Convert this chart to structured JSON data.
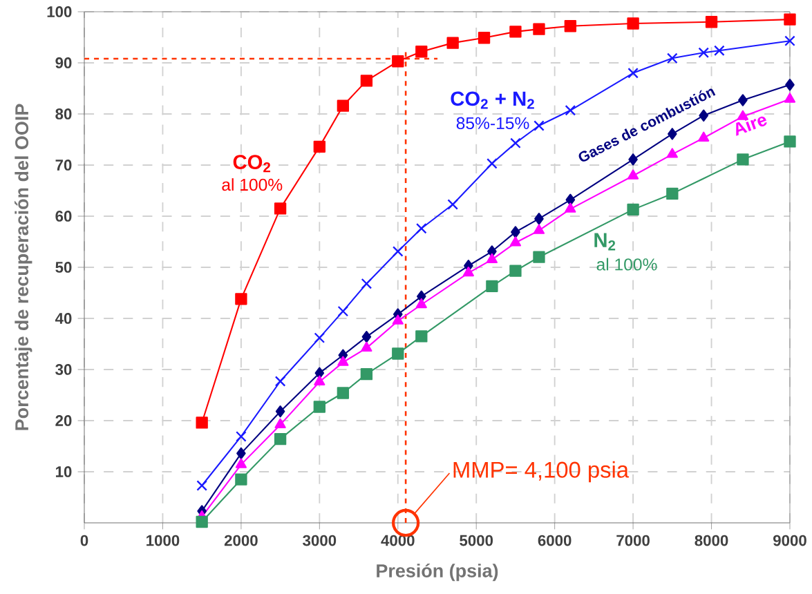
{
  "chart_data": {
    "type": "line",
    "xlabel": "Presión (psia)",
    "ylabel": "Porcentaje de recuperación del OOIP",
    "xlim": [
      0,
      9000
    ],
    "xticks": [
      0,
      1000,
      2000,
      3000,
      4000,
      5000,
      6000,
      7000,
      8000,
      9000
    ],
    "ylim": [
      0,
      100
    ],
    "yticks": [
      10,
      20,
      30,
      40,
      50,
      60,
      70,
      80,
      90,
      100
    ],
    "grid": true,
    "line_style": "solid",
    "series": [
      {
        "name": "CO$_{2}$",
        "color": "#ff0000",
        "marker": "square",
        "x": [
          1500,
          2000,
          2500,
          3000,
          3300,
          3600,
          4000,
          4300,
          4700,
          5100,
          5500,
          5800,
          6200,
          7000,
          8000,
          9000
        ],
        "values": [
          19.6,
          43.8,
          61.5,
          73.6,
          81.6,
          86.5,
          90.3,
          92.2,
          93.9,
          94.9,
          96.1,
          96.6,
          97.2,
          97.7,
          98.0,
          98.5
        ]
      },
      {
        "name": "CO$_{2}$ + N$_{2}$",
        "color": "#1a1aff",
        "marker": "cross",
        "x": [
          1500,
          2000,
          2500,
          3000,
          3300,
          3600,
          4000,
          4300,
          4700,
          5200,
          5500,
          5800,
          6200,
          7000,
          7500,
          7900,
          8100,
          9000
        ],
        "values": [
          7.3,
          16.9,
          27.7,
          36.2,
          41.4,
          46.8,
          53.1,
          57.6,
          62.3,
          70.3,
          74.3,
          77.7,
          80.7,
          88.0,
          90.9,
          92.0,
          92.4,
          94.3
        ]
      },
      {
        "name": "Gases de combustión",
        "color": "#000080",
        "marker": "diamond",
        "x": [
          1500,
          2000,
          2500,
          3000,
          3300,
          3600,
          4000,
          4300,
          4900,
          5200,
          5500,
          5800,
          6200,
          7000,
          7500,
          7900,
          8400,
          9000
        ],
        "values": [
          2.3,
          13.6,
          21.8,
          29.3,
          32.8,
          36.4,
          40.8,
          44.3,
          50.3,
          53.1,
          56.9,
          59.5,
          63.2,
          71.1,
          76.1,
          79.7,
          82.7,
          85.7
        ]
      },
      {
        "name": "Aire",
        "color": "#ff00ff",
        "marker": "triangle",
        "x": [
          1500,
          2000,
          2500,
          3000,
          3300,
          3600,
          4000,
          4300,
          4900,
          5200,
          5500,
          5800,
          6200,
          7000,
          7500,
          7900,
          8400,
          9000
        ],
        "values": [
          1.2,
          11.4,
          19.2,
          27.6,
          31.4,
          34.2,
          39.5,
          42.7,
          48.9,
          51.5,
          54.8,
          57.2,
          61.4,
          67.9,
          72.1,
          75.3,
          79.5,
          82.9
        ]
      },
      {
        "name": "N$_{2}$",
        "color": "#339966",
        "marker": "square",
        "x": [
          1500,
          2000,
          2500,
          3000,
          3300,
          3600,
          4000,
          4300,
          5200,
          5500,
          5800,
          7000,
          7500,
          8400,
          9000
        ],
        "values": [
          0.2,
          8.5,
          16.4,
          22.7,
          25.4,
          29.1,
          33.1,
          36.5,
          46.3,
          49.3,
          52.0,
          61.3,
          64.4,
          71.1,
          74.6
        ]
      }
    ],
    "ref_lines": [
      {
        "axis": "y",
        "value": 90.8,
        "color": "#ff3300",
        "line_style": "dashed"
      },
      {
        "axis": "x",
        "value": 4100,
        "label": "MMP= 4,100 psia",
        "color": "#ff3300",
        "line_style": "dashed"
      }
    ],
    "annotations": [
      "al 100%",
      "85%-15%",
      "al 100%"
    ]
  }
}
